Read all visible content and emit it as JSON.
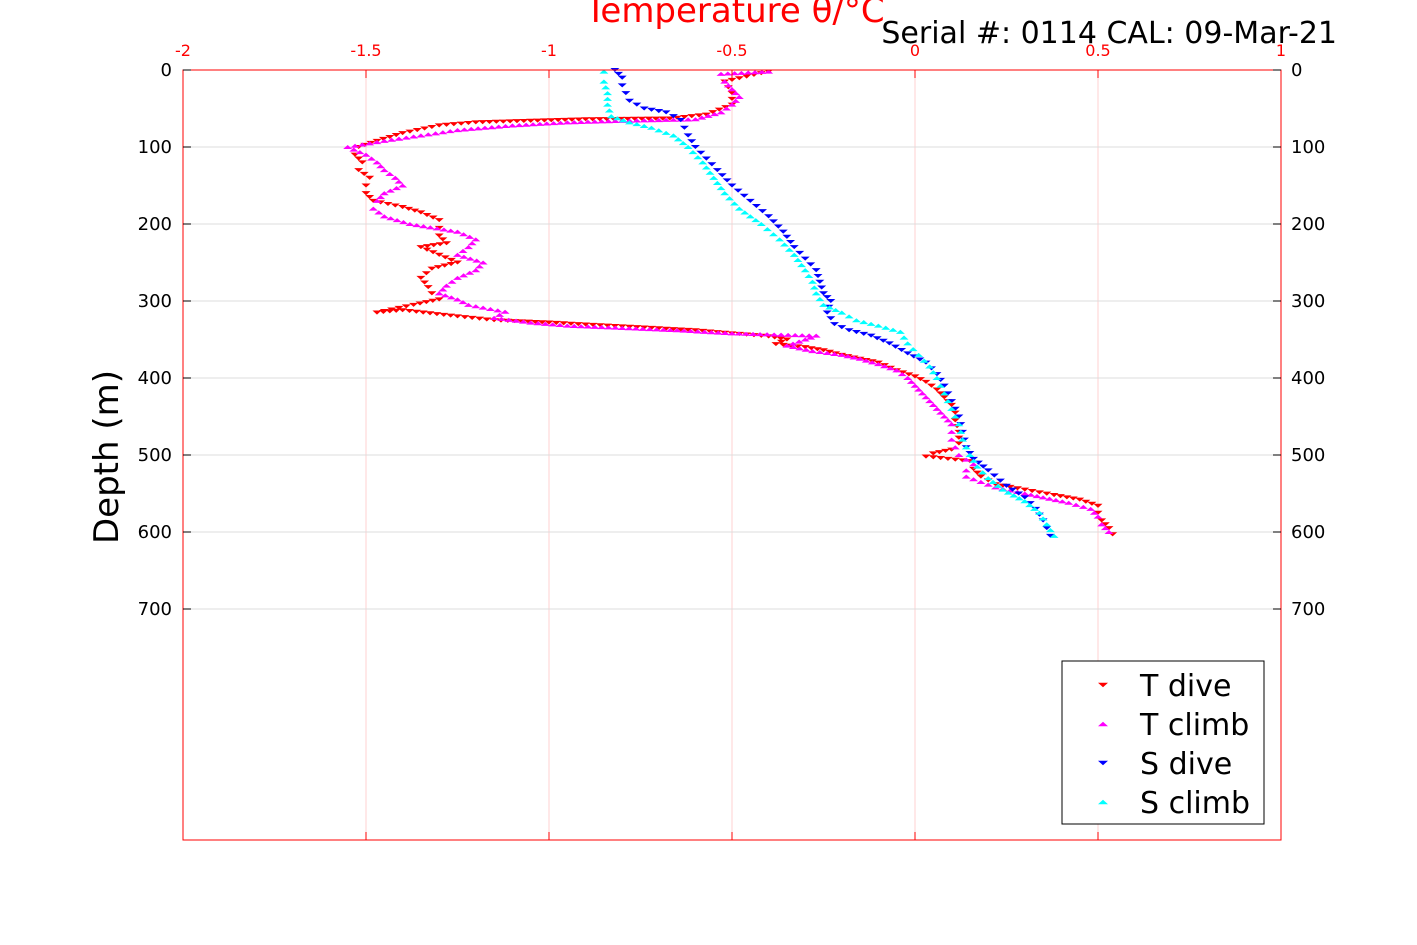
{
  "chart_data": {
    "type": "scatter",
    "title": "Temperature θ/°C",
    "annotation": "Serial #: 0114  CAL: 09-Mar-21",
    "xlabel": "Temperature θ/°C",
    "ylabel": "Depth (m)",
    "xlim": [
      -2,
      1
    ],
    "ylim": [
      0,
      1000
    ],
    "y_reversed": true,
    "x_ticks": [
      "-2",
      "-1.5",
      "-1",
      "-0.5",
      "0",
      "0.5",
      "1"
    ],
    "x_tick_values": [
      -2,
      -1.5,
      -1,
      -0.5,
      0,
      0.5,
      1
    ],
    "y_ticks": [
      "0",
      "100",
      "200",
      "300",
      "400",
      "500",
      "600",
      "700"
    ],
    "y_tick_values": [
      0,
      100,
      200,
      300,
      400,
      500,
      600,
      700
    ],
    "grid": true,
    "legend_position": "bottom-right",
    "series": [
      {
        "name": "T dive",
        "marker": "triangle-down",
        "color": "#ff0000",
        "points": [
          [
            -0.4,
            2
          ],
          [
            -0.52,
            15
          ],
          [
            -0.5,
            30
          ],
          [
            -0.5,
            45
          ],
          [
            -0.57,
            58
          ],
          [
            -0.67,
            63
          ],
          [
            -0.9,
            64
          ],
          [
            -1.05,
            66
          ],
          [
            -1.2,
            68
          ],
          [
            -1.3,
            72
          ],
          [
            -1.4,
            82
          ],
          [
            -1.47,
            92
          ],
          [
            -1.52,
            100
          ],
          [
            -1.53,
            110
          ],
          [
            -1.51,
            120
          ],
          [
            -1.52,
            130
          ],
          [
            -1.49,
            140
          ],
          [
            -1.5,
            150
          ],
          [
            -1.5,
            160
          ],
          [
            -1.48,
            170
          ],
          [
            -1.4,
            178
          ],
          [
            -1.35,
            185
          ],
          [
            -1.3,
            195
          ],
          [
            -1.3,
            205
          ],
          [
            -1.3,
            215
          ],
          [
            -1.28,
            225
          ],
          [
            -1.35,
            230
          ],
          [
            -1.3,
            240
          ],
          [
            -1.25,
            250
          ],
          [
            -1.32,
            258
          ],
          [
            -1.35,
            270
          ],
          [
            -1.33,
            282
          ],
          [
            -1.32,
            290
          ],
          [
            -1.3,
            298
          ],
          [
            -1.37,
            305
          ],
          [
            -1.47,
            315
          ],
          [
            -1.4,
            312
          ],
          [
            -1.25,
            320
          ],
          [
            -1.15,
            325
          ],
          [
            -1.0,
            328
          ],
          [
            -0.8,
            333
          ],
          [
            -0.6,
            338
          ],
          [
            -0.5,
            342
          ],
          [
            -0.4,
            346
          ],
          [
            -0.35,
            350
          ],
          [
            -0.38,
            356
          ],
          [
            -0.3,
            360
          ],
          [
            -0.25,
            364
          ],
          [
            -0.2,
            370
          ],
          [
            -0.15,
            375
          ],
          [
            -0.1,
            380
          ],
          [
            -0.05,
            390
          ],
          [
            0.0,
            398
          ],
          [
            0.03,
            405
          ],
          [
            0.06,
            415
          ],
          [
            0.08,
            425
          ],
          [
            0.1,
            435
          ],
          [
            0.11,
            445
          ],
          [
            0.11,
            455
          ],
          [
            0.12,
            470
          ],
          [
            0.12,
            485
          ],
          [
            0.1,
            493
          ],
          [
            0.05,
            498
          ],
          [
            0.03,
            502
          ],
          [
            0.15,
            508
          ],
          [
            0.16,
            518
          ],
          [
            0.18,
            528
          ],
          [
            0.22,
            538
          ],
          [
            0.3,
            545
          ],
          [
            0.38,
            552
          ],
          [
            0.45,
            558
          ],
          [
            0.5,
            566
          ],
          [
            0.5,
            575
          ],
          [
            0.51,
            585
          ],
          [
            0.53,
            595
          ],
          [
            0.54,
            603
          ]
        ]
      },
      {
        "name": "T climb",
        "marker": "triangle-up",
        "color": "#ff00ff",
        "points": [
          [
            0.53,
            600
          ],
          [
            0.51,
            590
          ],
          [
            0.5,
            580
          ],
          [
            0.48,
            570
          ],
          [
            0.42,
            562
          ],
          [
            0.35,
            555
          ],
          [
            0.3,
            550
          ],
          [
            0.22,
            542
          ],
          [
            0.18,
            535
          ],
          [
            0.14,
            528
          ],
          [
            0.14,
            520
          ],
          [
            0.16,
            512
          ],
          [
            0.12,
            500
          ],
          [
            0.11,
            490
          ],
          [
            0.1,
            480
          ],
          [
            0.1,
            470
          ],
          [
            0.1,
            460
          ],
          [
            0.08,
            450
          ],
          [
            0.06,
            440
          ],
          [
            0.04,
            430
          ],
          [
            0.02,
            420
          ],
          [
            0.0,
            410
          ],
          [
            -0.02,
            400
          ],
          [
            -0.05,
            390
          ],
          [
            -0.1,
            382
          ],
          [
            -0.15,
            375
          ],
          [
            -0.2,
            370
          ],
          [
            -0.28,
            365
          ],
          [
            -0.35,
            358
          ],
          [
            -0.3,
            350
          ],
          [
            -0.27,
            345
          ],
          [
            -0.5,
            342
          ],
          [
            -0.65,
            338
          ],
          [
            -0.8,
            335
          ],
          [
            -0.95,
            332
          ],
          [
            -1.05,
            328
          ],
          [
            -1.15,
            322
          ],
          [
            -1.12,
            314
          ],
          [
            -1.22,
            305
          ],
          [
            -1.25,
            298
          ],
          [
            -1.3,
            290
          ],
          [
            -1.28,
            280
          ],
          [
            -1.25,
            270
          ],
          [
            -1.2,
            260
          ],
          [
            -1.18,
            250
          ],
          [
            -1.25,
            240
          ],
          [
            -1.22,
            230
          ],
          [
            -1.2,
            220
          ],
          [
            -1.25,
            210
          ],
          [
            -1.38,
            200
          ],
          [
            -1.45,
            190
          ],
          [
            -1.48,
            180
          ],
          [
            -1.47,
            170
          ],
          [
            -1.45,
            160
          ],
          [
            -1.4,
            150
          ],
          [
            -1.42,
            140
          ],
          [
            -1.45,
            130
          ],
          [
            -1.47,
            120
          ],
          [
            -1.5,
            110
          ],
          [
            -1.55,
            100
          ],
          [
            -1.45,
            92
          ],
          [
            -1.35,
            85
          ],
          [
            -1.25,
            78
          ],
          [
            -1.1,
            72
          ],
          [
            -0.95,
            68
          ],
          [
            -0.8,
            66
          ],
          [
            -0.6,
            64
          ],
          [
            -0.53,
            55
          ],
          [
            -0.5,
            45
          ],
          [
            -0.48,
            35
          ],
          [
            -0.5,
            25
          ],
          [
            -0.52,
            15
          ],
          [
            -0.53,
            5
          ],
          [
            -0.4,
            2
          ]
        ]
      },
      {
        "name": "S dive",
        "marker": "triangle-down",
        "color": "#0000ff",
        "points": [
          [
            -0.82,
            0
          ],
          [
            -0.8,
            10
          ],
          [
            -0.8,
            20
          ],
          [
            -0.79,
            30
          ],
          [
            -0.78,
            40
          ],
          [
            -0.74,
            50
          ],
          [
            -0.68,
            55
          ],
          [
            -0.64,
            65
          ],
          [
            -0.63,
            75
          ],
          [
            -0.62,
            85
          ],
          [
            -0.6,
            100
          ],
          [
            -0.57,
            115
          ],
          [
            -0.54,
            130
          ],
          [
            -0.5,
            150
          ],
          [
            -0.45,
            170
          ],
          [
            -0.4,
            190
          ],
          [
            -0.36,
            210
          ],
          [
            -0.33,
            230
          ],
          [
            -0.3,
            245
          ],
          [
            -0.27,
            260
          ],
          [
            -0.26,
            275
          ],
          [
            -0.25,
            290
          ],
          [
            -0.23,
            300
          ],
          [
            -0.24,
            315
          ],
          [
            -0.22,
            330
          ],
          [
            -0.18,
            338
          ],
          [
            -0.12,
            345
          ],
          [
            -0.07,
            355
          ],
          [
            -0.02,
            368
          ],
          [
            0.03,
            380
          ],
          [
            0.06,
            395
          ],
          [
            0.08,
            410
          ],
          [
            0.1,
            430
          ],
          [
            0.12,
            450
          ],
          [
            0.13,
            470
          ],
          [
            0.14,
            490
          ],
          [
            0.16,
            505
          ],
          [
            0.2,
            520
          ],
          [
            0.25,
            540
          ],
          [
            0.3,
            555
          ],
          [
            0.33,
            570
          ],
          [
            0.35,
            585
          ],
          [
            0.37,
            605
          ]
        ]
      },
      {
        "name": "S climb",
        "marker": "triangle-up",
        "color": "#00ffff",
        "points": [
          [
            0.38,
            605
          ],
          [
            0.36,
            590
          ],
          [
            0.34,
            575
          ],
          [
            0.3,
            560
          ],
          [
            0.24,
            545
          ],
          [
            0.2,
            530
          ],
          [
            0.17,
            515
          ],
          [
            0.15,
            500
          ],
          [
            0.13,
            480
          ],
          [
            0.12,
            460
          ],
          [
            0.1,
            440
          ],
          [
            0.08,
            420
          ],
          [
            0.06,
            400
          ],
          [
            0.04,
            385
          ],
          [
            0.01,
            370
          ],
          [
            -0.02,
            355
          ],
          [
            -0.04,
            340
          ],
          [
            -0.1,
            332
          ],
          [
            -0.16,
            325
          ],
          [
            -0.2,
            315
          ],
          [
            -0.25,
            305
          ],
          [
            -0.27,
            290
          ],
          [
            -0.28,
            275
          ],
          [
            -0.3,
            260
          ],
          [
            -0.33,
            240
          ],
          [
            -0.37,
            220
          ],
          [
            -0.42,
            200
          ],
          [
            -0.48,
            180
          ],
          [
            -0.52,
            160
          ],
          [
            -0.55,
            140
          ],
          [
            -0.58,
            120
          ],
          [
            -0.62,
            100
          ],
          [
            -0.66,
            85
          ],
          [
            -0.72,
            75
          ],
          [
            -0.78,
            68
          ],
          [
            -0.83,
            60
          ],
          [
            -0.84,
            45
          ],
          [
            -0.84,
            30
          ],
          [
            -0.85,
            15
          ],
          [
            -0.85,
            2
          ]
        ]
      }
    ]
  }
}
